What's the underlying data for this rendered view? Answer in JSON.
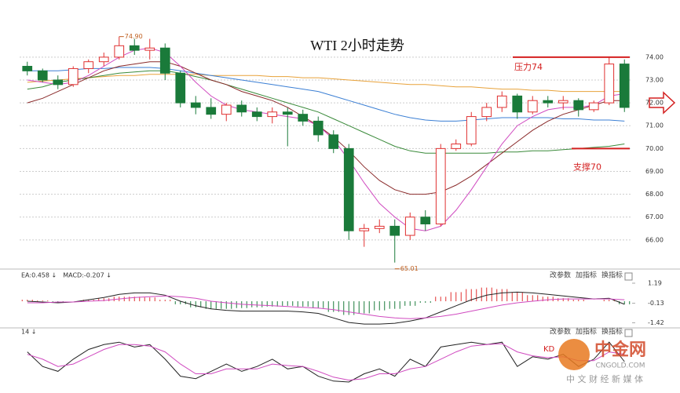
{
  "chart_data": [
    {
      "type": "candlestick",
      "title": "WTI 2小时走势",
      "open": [
        73.6,
        73.4,
        73.0,
        72.8,
        73.5,
        73.8,
        74.0,
        74.5,
        74.3,
        74.4,
        73.3,
        72.0,
        71.8,
        71.5,
        71.9,
        71.6,
        71.4,
        71.6,
        71.5,
        71.2,
        70.6,
        70.0,
        66.4,
        66.5,
        66.6,
        66.2,
        67.0,
        66.7,
        70.0,
        70.2,
        71.4,
        71.8,
        72.3,
        71.6,
        72.1,
        72.0,
        72.1,
        71.7,
        72.0,
        73.7
      ],
      "high": [
        73.8,
        73.5,
        73.2,
        73.6,
        73.9,
        74.2,
        74.9,
        74.8,
        74.8,
        74.6,
        73.4,
        72.3,
        72.2,
        72.0,
        72.1,
        71.8,
        71.8,
        71.8,
        71.7,
        71.4,
        70.8,
        70.2,
        66.7,
        66.9,
        66.9,
        67.2,
        67.3,
        70.2,
        70.4,
        71.6,
        72.0,
        72.5,
        72.4,
        72.3,
        72.3,
        72.3,
        72.2,
        72.1,
        74.0,
        73.9
      ],
      "low": [
        73.2,
        72.9,
        72.6,
        72.7,
        73.3,
        73.6,
        73.9,
        74.1,
        73.9,
        73.0,
        71.8,
        71.5,
        71.3,
        71.2,
        71.4,
        71.2,
        71.1,
        70.1,
        71.0,
        70.3,
        69.8,
        66.0,
        65.7,
        66.3,
        65.01,
        66.0,
        66.4,
        66.6,
        69.9,
        70.1,
        71.2,
        71.6,
        71.3,
        71.5,
        71.8,
        71.7,
        71.4,
        71.6,
        71.9,
        71.6
      ],
      "close": [
        73.4,
        73.0,
        72.8,
        73.5,
        73.8,
        74.0,
        74.5,
        74.3,
        74.4,
        73.3,
        72.0,
        71.8,
        71.5,
        71.9,
        71.6,
        71.4,
        71.6,
        71.5,
        71.2,
        70.6,
        70.0,
        66.4,
        66.5,
        66.6,
        66.2,
        67.0,
        66.7,
        70.0,
        70.2,
        71.4,
        71.8,
        72.3,
        71.6,
        72.1,
        72.0,
        72.1,
        71.7,
        72.0,
        73.7,
        71.8
      ],
      "up_color": "#e03030",
      "down_color": "#1a7a3a",
      "series": [
        {
          "color": "#e8a23a",
          "values": [
            72.9,
            72.95,
            73.0,
            73.05,
            73.1,
            73.15,
            73.2,
            73.2,
            73.25,
            73.25,
            73.25,
            73.25,
            73.2,
            73.2,
            73.2,
            73.2,
            73.15,
            73.15,
            73.1,
            73.1,
            73.05,
            73.0,
            72.95,
            72.9,
            72.85,
            72.8,
            72.8,
            72.75,
            72.7,
            72.7,
            72.65,
            72.6,
            72.6,
            72.55,
            72.55,
            72.5,
            72.5,
            72.5,
            72.5,
            72.5
          ]
        },
        {
          "color": "#3b7fd4",
          "values": [
            73.4,
            73.4,
            73.4,
            73.45,
            73.5,
            73.5,
            73.55,
            73.55,
            73.55,
            73.5,
            73.4,
            73.3,
            73.2,
            73.1,
            73.0,
            72.9,
            72.8,
            72.7,
            72.6,
            72.5,
            72.3,
            72.1,
            71.9,
            71.7,
            71.5,
            71.35,
            71.25,
            71.2,
            71.2,
            71.25,
            71.3,
            71.35,
            71.35,
            71.35,
            71.35,
            71.3,
            71.3,
            71.25,
            71.25,
            71.2
          ]
        },
        {
          "color": "#3a8a3a",
          "values": [
            72.6,
            72.7,
            72.9,
            73.0,
            73.1,
            73.2,
            73.3,
            73.35,
            73.4,
            73.4,
            73.3,
            73.15,
            73.0,
            72.8,
            72.6,
            72.4,
            72.2,
            72.0,
            71.8,
            71.6,
            71.3,
            71.0,
            70.7,
            70.4,
            70.1,
            69.9,
            69.8,
            69.8,
            69.8,
            69.8,
            69.8,
            69.85,
            69.85,
            69.9,
            69.9,
            69.95,
            70.0,
            70.05,
            70.1,
            70.2
          ]
        },
        {
          "color": "#8a2a2a",
          "values": [
            72.0,
            72.2,
            72.5,
            72.8,
            73.1,
            73.4,
            73.6,
            73.7,
            73.8,
            73.8,
            73.6,
            73.3,
            73.0,
            72.8,
            72.5,
            72.3,
            72.1,
            71.8,
            71.4,
            71.0,
            70.5,
            69.9,
            69.2,
            68.6,
            68.2,
            68.0,
            68.0,
            68.1,
            68.4,
            68.8,
            69.3,
            69.8,
            70.3,
            70.8,
            71.2,
            71.5,
            71.7,
            71.9,
            72.1,
            72.1
          ]
        },
        {
          "color": "#d04ac0",
          "values": [
            73.0,
            72.9,
            72.8,
            72.9,
            73.2,
            73.6,
            74.0,
            74.3,
            74.4,
            74.2,
            73.6,
            72.9,
            72.3,
            71.9,
            71.7,
            71.6,
            71.5,
            71.4,
            71.3,
            71.0,
            70.4,
            69.5,
            68.5,
            67.6,
            67.0,
            66.5,
            66.4,
            66.6,
            67.3,
            68.2,
            69.2,
            70.2,
            71.0,
            71.4,
            71.7,
            71.8,
            71.8,
            71.9,
            72.3,
            72.4
          ]
        }
      ],
      "ylim": [
        65.0,
        75.3
      ],
      "yticks": [
        {
          "value": 74,
          "label": "74.00"
        },
        {
          "value": 73,
          "label": "73.00"
        },
        {
          "value": 72,
          "label": "72.00"
        },
        {
          "value": 71,
          "label": "71.00"
        },
        {
          "value": 70,
          "label": "70.00"
        },
        {
          "value": 69,
          "label": "69.00"
        },
        {
          "value": 68,
          "label": "68.00"
        },
        {
          "value": 67,
          "label": "67.00"
        },
        {
          "value": 66,
          "label": "66.00"
        }
      ],
      "grid": true,
      "resistance": {
        "value": 74,
        "label": "压力74",
        "color": "#d42020"
      },
      "support": {
        "value": 70,
        "label": "支撑70",
        "color": "#d42020"
      },
      "high_label": {
        "value": 74.9,
        "label": "74.90"
      },
      "low_label": {
        "value": 65.01,
        "label": "65.01"
      }
    },
    {
      "type": "macd",
      "header": [
        "EA:0.458 ↓",
        "MACD:-0.207 ↓"
      ],
      "buttons": [
        "改参数",
        "加指标",
        "换指标"
      ],
      "histogram": [
        0.1,
        0.05,
        -0.05,
        0.0,
        0.1,
        0.2,
        0.3,
        0.3,
        0.25,
        0.1,
        -0.2,
        -0.4,
        -0.5,
        -0.5,
        -0.45,
        -0.4,
        -0.35,
        -0.3,
        -0.35,
        -0.45,
        -0.7,
        -0.9,
        -0.8,
        -0.6,
        -0.5,
        -0.3,
        -0.1,
        0.3,
        0.6,
        0.8,
        0.9,
        0.8,
        0.6,
        0.4,
        0.3,
        0.2,
        0.1,
        0.0,
        0.1,
        -0.2
      ],
      "series": [
        {
          "color": "#222222",
          "values": [
            0.0,
            -0.05,
            -0.1,
            -0.05,
            0.1,
            0.25,
            0.45,
            0.55,
            0.55,
            0.4,
            0.0,
            -0.3,
            -0.5,
            -0.6,
            -0.65,
            -0.65,
            -0.65,
            -0.65,
            -0.7,
            -0.8,
            -1.1,
            -1.4,
            -1.5,
            -1.5,
            -1.45,
            -1.3,
            -1.1,
            -0.7,
            -0.3,
            0.1,
            0.4,
            0.55,
            0.6,
            0.55,
            0.45,
            0.35,
            0.25,
            0.15,
            0.2,
            -0.2
          ]
        },
        {
          "color": "#d04ac0",
          "values": [
            -0.1,
            -0.1,
            -0.05,
            -0.05,
            0.0,
            0.05,
            0.15,
            0.25,
            0.3,
            0.35,
            0.3,
            0.2,
            0.0,
            -0.1,
            -0.2,
            -0.25,
            -0.3,
            -0.35,
            -0.4,
            -0.45,
            -0.55,
            -0.7,
            -0.85,
            -1.0,
            -1.1,
            -1.15,
            -1.1,
            -1.0,
            -0.85,
            -0.65,
            -0.45,
            -0.25,
            -0.1,
            0.0,
            0.1,
            0.15,
            0.15,
            0.15,
            0.15,
            0.1
          ]
        }
      ],
      "up_color": "#e03030",
      "down_color": "#1a7a3a",
      "ylim": [
        -1.6,
        1.5
      ],
      "yticks": [
        1.19,
        -0.13,
        -1.42
      ]
    },
    {
      "type": "kdj",
      "header": [
        "14 ↓"
      ],
      "buttons": [
        "改参数",
        "加指标",
        "换指标"
      ],
      "label": "KD",
      "series": [
        {
          "color": "#222222",
          "values": [
            70,
            40,
            30,
            55,
            75,
            85,
            90,
            80,
            85,
            55,
            20,
            15,
            30,
            45,
            30,
            40,
            55,
            35,
            40,
            20,
            10,
            8,
            25,
            35,
            20,
            55,
            40,
            80,
            85,
            90,
            85,
            90,
            40,
            60,
            55,
            65,
            40,
            55,
            90,
            50
          ]
        },
        {
          "color": "#d04ac0",
          "values": [
            65,
            55,
            40,
            45,
            60,
            75,
            85,
            85,
            82,
            70,
            45,
            25,
            25,
            35,
            35,
            35,
            45,
            42,
            40,
            30,
            18,
            12,
            15,
            25,
            25,
            35,
            40,
            55,
            70,
            82,
            85,
            87,
            70,
            62,
            58,
            60,
            52,
            52,
            70,
            65
          ]
        }
      ],
      "ylim": [
        0,
        100
      ]
    }
  ],
  "watermark": {
    "name": "中金网",
    "site": "CNGOLD.COM",
    "slogan": "中 文 财 经 新 媒 体"
  }
}
